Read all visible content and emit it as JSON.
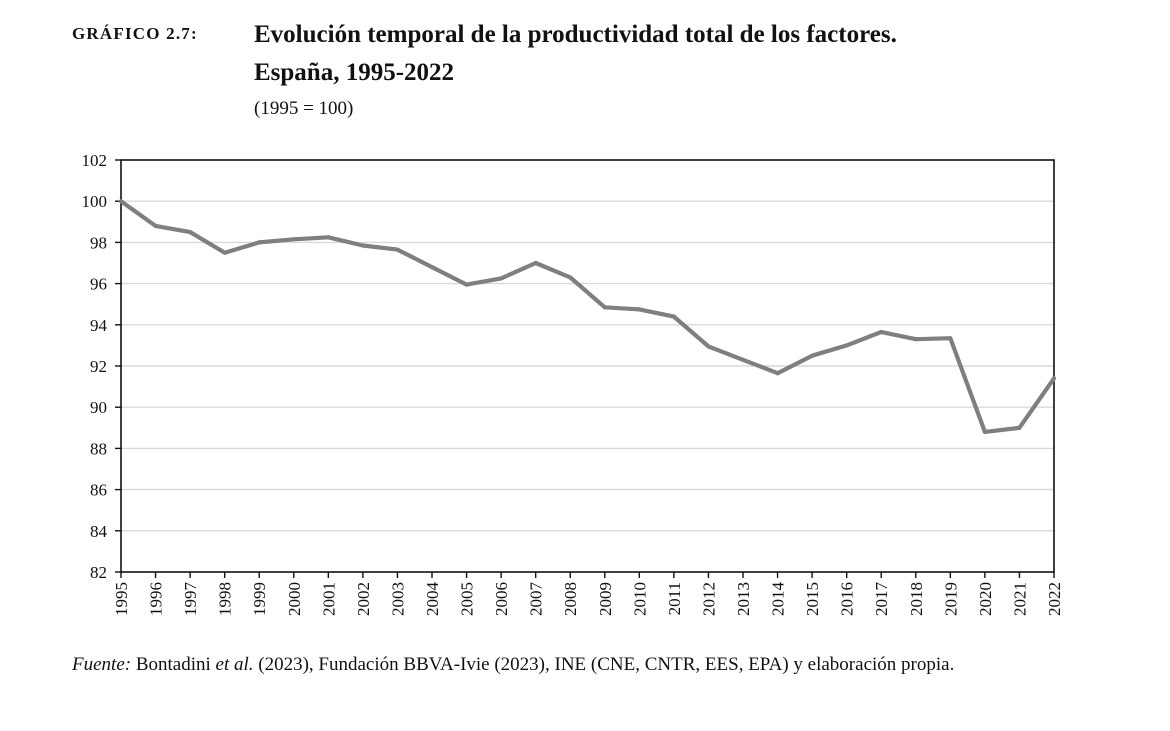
{
  "header": {
    "figure_label": "GRÁFICO 2.7:",
    "title_line1": "Evolución temporal de la productividad total de los factores.",
    "title_line2": "España, 1995-2022",
    "subtitle": "(1995 = 100)"
  },
  "footer": {
    "source_prefix": "Fuente:",
    "source_part1": " Bontadini ",
    "source_etal": "et al.",
    "source_part2": " (2023), Fundación BBVA-Ivie (2023), INE (CNE, CNTR, EES, EPA) y elaboración propia."
  },
  "colors": {
    "line": "#7f7f7f",
    "grid": "#d9d9d9",
    "axis": "#111111"
  },
  "chart_data": {
    "type": "line",
    "title": "Evolución temporal de la productividad total de los factores. España, 1995-2022",
    "subtitle": "(1995 = 100)",
    "xlabel": "",
    "ylabel": "",
    "ylim": [
      82,
      102
    ],
    "yticks": [
      82,
      84,
      86,
      88,
      90,
      92,
      94,
      96,
      98,
      100,
      102
    ],
    "grid": true,
    "legend": "none",
    "x": [
      1995,
      1996,
      1997,
      1998,
      1999,
      2000,
      2001,
      2002,
      2003,
      2004,
      2005,
      2006,
      2007,
      2008,
      2009,
      2010,
      2011,
      2012,
      2013,
      2014,
      2015,
      2016,
      2017,
      2018,
      2019,
      2020,
      2021,
      2022
    ],
    "series": [
      {
        "name": "Productividad total de los factores",
        "values": [
          100.0,
          98.8,
          98.5,
          97.5,
          98.0,
          98.15,
          98.25,
          97.85,
          97.65,
          96.8,
          95.95,
          96.25,
          97.0,
          96.3,
          94.85,
          94.75,
          94.4,
          92.95,
          92.3,
          91.65,
          92.5,
          93.0,
          93.65,
          93.3,
          93.35,
          88.8,
          89.0,
          91.4
        ]
      }
    ]
  }
}
